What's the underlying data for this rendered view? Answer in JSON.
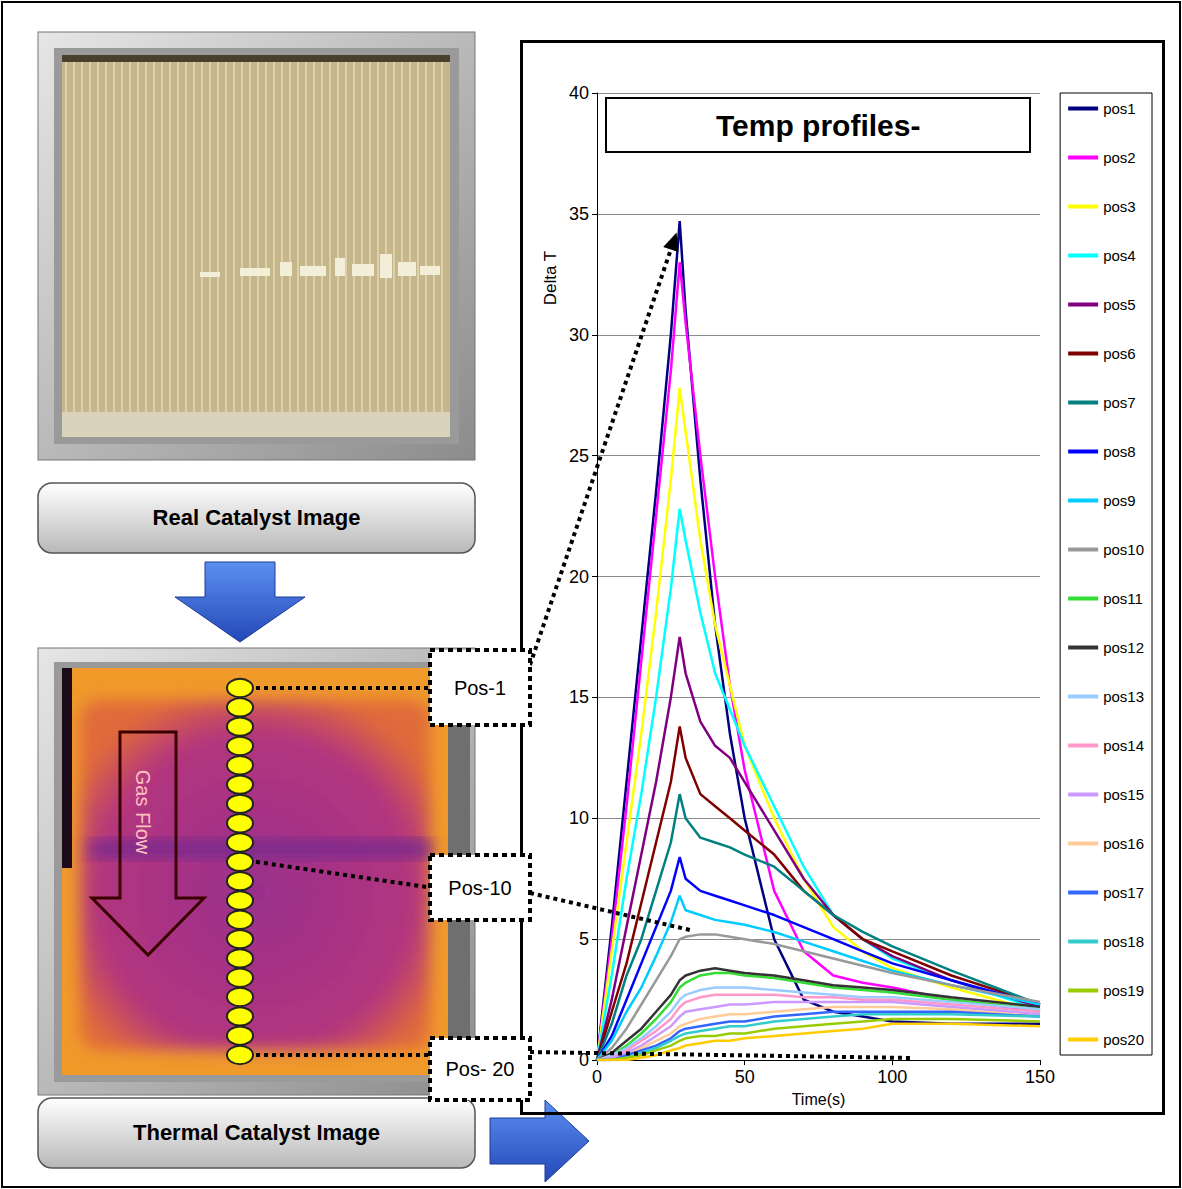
{
  "panels": {
    "real_image": {
      "caption": "Real Catalyst Image"
    },
    "thermal_image": {
      "caption": "Thermal Catalyst Image",
      "arrow_label": "Gas Flow",
      "position_labels": [
        "Pos-1",
        "Pos-10",
        "Pos- 20"
      ]
    }
  },
  "chart_data": {
    "type": "line",
    "title": "Temp profiles-",
    "x_label": "Time(s)",
    "y_label": "Delta T",
    "x": [
      0,
      5,
      10,
      15,
      20,
      25,
      28,
      30,
      35,
      40,
      45,
      50,
      60,
      70,
      80,
      90,
      100,
      120,
      150
    ],
    "xlim": [
      0,
      150
    ],
    "xticks": [
      0,
      50,
      100,
      150
    ],
    "ylim": [
      0,
      40
    ],
    "yticks": [
      0,
      5,
      10,
      15,
      20,
      25,
      30,
      35,
      40
    ],
    "grid": true,
    "legend": "right",
    "series": [
      {
        "name": "pos1",
        "color": "#000080",
        "values": [
          0,
          5.5,
          11.5,
          17.5,
          23.5,
          30,
          34.7,
          31,
          24,
          18,
          13.5,
          10,
          5,
          2.5,
          2,
          1.8,
          1.6,
          1.5,
          1.5
        ]
      },
      {
        "name": "pos2",
        "color": "#ff00ff",
        "values": [
          0,
          5,
          10.5,
          16.5,
          22.5,
          28.5,
          33,
          30.5,
          25,
          20,
          15.5,
          12,
          7,
          4.5,
          3.5,
          3.2,
          3,
          2.5,
          2
        ]
      },
      {
        "name": "pos3",
        "color": "#ffff00",
        "values": [
          0,
          4.5,
          9,
          13.5,
          18.5,
          24,
          27.8,
          26,
          21.5,
          18,
          15.5,
          13,
          10,
          7.5,
          5.5,
          4.5,
          3.8,
          3,
          2
        ]
      },
      {
        "name": "pos4",
        "color": "#00ffff",
        "values": [
          0,
          3.5,
          7.5,
          11,
          15,
          19.5,
          22.8,
          21.5,
          18.5,
          16,
          14.5,
          13,
          10.5,
          8,
          6,
          5,
          4.2,
          3.3,
          2.1
        ]
      },
      {
        "name": "pos5",
        "color": "#800080",
        "values": [
          0,
          2.5,
          5.5,
          8.5,
          11.5,
          15,
          17.5,
          16,
          14,
          13,
          12.5,
          11.5,
          9.5,
          7.5,
          6,
          5,
          4.3,
          3.3,
          2.2
        ]
      },
      {
        "name": "pos6",
        "color": "#800000",
        "values": [
          0,
          2,
          4,
          6.5,
          9,
          11.5,
          13.8,
          12.5,
          11,
          10.5,
          10,
          9.5,
          8.5,
          7,
          6,
          5,
          4.5,
          3.5,
          2.3
        ]
      },
      {
        "name": "pos7",
        "color": "#008080",
        "values": [
          0,
          1.5,
          3.5,
          5,
          7,
          9,
          11,
          10,
          9.2,
          9,
          8.8,
          8.5,
          8,
          7,
          6,
          5.3,
          4.7,
          3.7,
          2.3
        ]
      },
      {
        "name": "pos8",
        "color": "#0000ff",
        "values": [
          0,
          1,
          2.5,
          4,
          5.5,
          7,
          8.4,
          7.5,
          7,
          6.8,
          6.6,
          6.4,
          6,
          5.5,
          5,
          4.5,
          4,
          3.3,
          2.3
        ]
      },
      {
        "name": "pos9",
        "color": "#00ccff",
        "values": [
          0,
          0.8,
          2,
          3,
          4.3,
          5.7,
          6.8,
          6.2,
          6,
          5.8,
          5.7,
          5.6,
          5.3,
          4.9,
          4.5,
          4.1,
          3.7,
          3.1,
          2.3
        ]
      },
      {
        "name": "pos10",
        "color": "#999999",
        "values": [
          0,
          0.5,
          1.3,
          2.3,
          3.3,
          4.3,
          5,
          5.1,
          5.2,
          5.2,
          5.1,
          5,
          4.8,
          4.5,
          4.2,
          3.9,
          3.6,
          3.1,
          2.4
        ]
      },
      {
        "name": "pos11",
        "color": "#33dd33",
        "values": [
          0,
          0.2,
          0.6,
          1.1,
          1.7,
          2.4,
          3,
          3.2,
          3.5,
          3.6,
          3.6,
          3.5,
          3.4,
          3.2,
          3,
          2.9,
          2.8,
          2.5,
          2.1
        ]
      },
      {
        "name": "pos12",
        "color": "#333333",
        "values": [
          0,
          0.3,
          0.8,
          1.3,
          2,
          2.7,
          3.3,
          3.5,
          3.7,
          3.8,
          3.7,
          3.6,
          3.5,
          3.3,
          3.1,
          3,
          2.9,
          2.6,
          2.2
        ]
      },
      {
        "name": "pos13",
        "color": "#99ccff",
        "values": [
          0,
          0.2,
          0.5,
          0.9,
          1.4,
          2,
          2.5,
          2.7,
          2.9,
          3,
          3,
          3,
          2.9,
          2.8,
          2.7,
          2.6,
          2.6,
          2.4,
          2.1
        ]
      },
      {
        "name": "pos14",
        "color": "#ff99cc",
        "values": [
          0,
          0.1,
          0.4,
          0.8,
          1.2,
          1.7,
          2.2,
          2.4,
          2.6,
          2.7,
          2.7,
          2.7,
          2.7,
          2.6,
          2.6,
          2.5,
          2.5,
          2.3,
          2
        ]
      },
      {
        "name": "pos15",
        "color": "#cc99ff",
        "values": [
          0,
          0.1,
          0.3,
          0.6,
          1,
          1.4,
          1.8,
          2,
          2.1,
          2.2,
          2.3,
          2.3,
          2.4,
          2.4,
          2.4,
          2.4,
          2.4,
          2.2,
          1.9
        ]
      },
      {
        "name": "pos16",
        "color": "#ffcc99",
        "values": [
          0,
          0,
          0.2,
          0.5,
          0.8,
          1.1,
          1.4,
          1.5,
          1.7,
          1.8,
          1.9,
          1.9,
          2,
          2.1,
          2.2,
          2.2,
          2.2,
          2.1,
          1.8
        ]
      },
      {
        "name": "pos17",
        "color": "#3366ff",
        "values": [
          0,
          0,
          0.2,
          0.4,
          0.6,
          0.9,
          1.2,
          1.3,
          1.4,
          1.5,
          1.6,
          1.6,
          1.8,
          1.9,
          2,
          2,
          2,
          2,
          1.8
        ]
      },
      {
        "name": "pos18",
        "color": "#33cccc",
        "values": [
          0,
          0,
          0.1,
          0.3,
          0.5,
          0.8,
          1,
          1.1,
          1.2,
          1.3,
          1.4,
          1.4,
          1.6,
          1.7,
          1.8,
          1.9,
          1.9,
          1.9,
          1.8
        ]
      },
      {
        "name": "pos19",
        "color": "#99cc00",
        "values": [
          0,
          0,
          0.1,
          0.2,
          0.4,
          0.6,
          0.8,
          0.9,
          1,
          1,
          1.1,
          1.1,
          1.3,
          1.4,
          1.5,
          1.6,
          1.7,
          1.7,
          1.6
        ]
      },
      {
        "name": "pos20",
        "color": "#ffcc00",
        "values": [
          0,
          0,
          0,
          0.1,
          0.2,
          0.4,
          0.5,
          0.6,
          0.7,
          0.8,
          0.8,
          0.9,
          1,
          1.1,
          1.2,
          1.3,
          1.5,
          1.5,
          1.4
        ]
      }
    ]
  }
}
